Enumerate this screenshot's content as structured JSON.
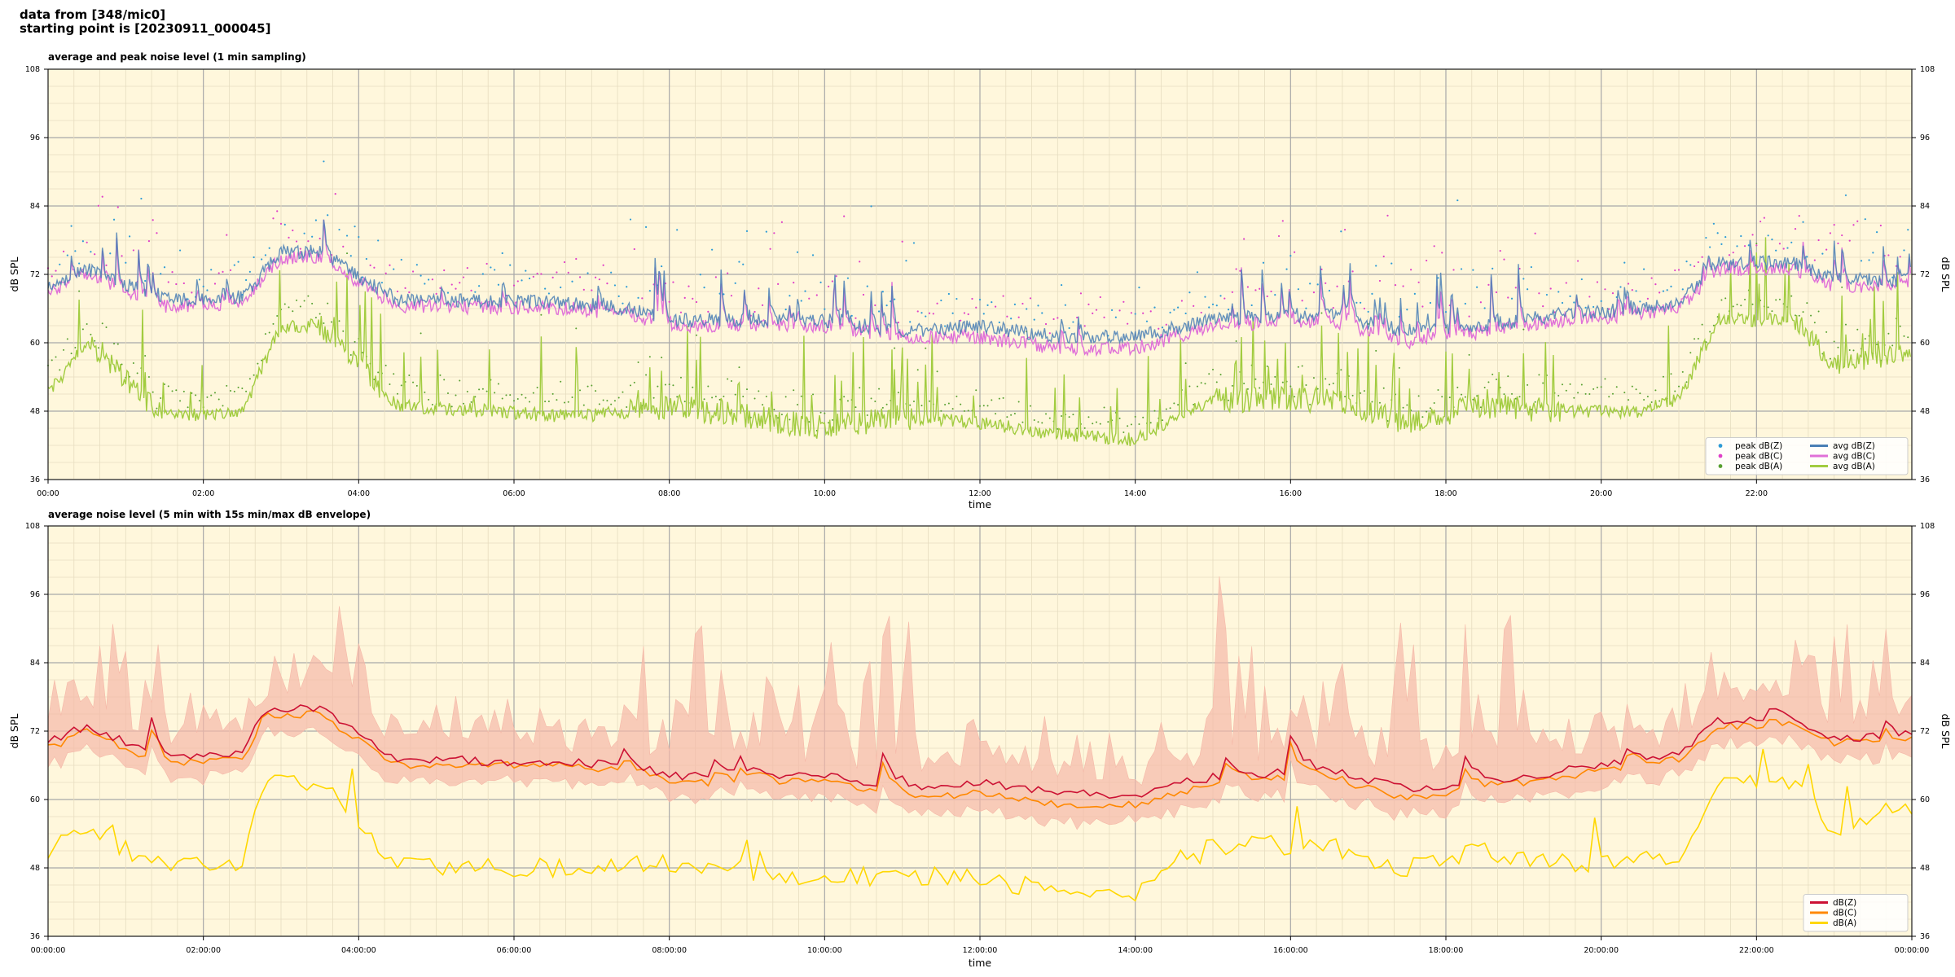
{
  "header": {
    "line1": "data from [348/mic0]",
    "line2": "starting point is [20230911_000045]"
  },
  "chart_data": [
    {
      "type": "line",
      "title": "average and peak noise level (1 min sampling)",
      "xlabel": "time",
      "ylabel": "dB SPL",
      "ylim": [
        36,
        108
      ],
      "yticks": [
        "36",
        "48",
        "60",
        "72",
        "84",
        "96",
        "108"
      ],
      "xlim_hours": [
        0,
        24
      ],
      "xticks": [
        "00:00",
        "02:00",
        "04:00",
        "06:00",
        "08:00",
        "10:00",
        "12:00",
        "14:00",
        "16:00",
        "18:00",
        "20:00",
        "22:00"
      ],
      "grid": true,
      "legend_position": "bottom-right",
      "legend": [
        {
          "label": "peak dB(Z)",
          "kind": "dot",
          "color": "#2e9bd6"
        },
        {
          "label": "peak dB(C)",
          "kind": "dot",
          "color": "#e040c8"
        },
        {
          "label": "peak dB(A)",
          "kind": "dot",
          "color": "#58a030"
        },
        {
          "label": "avg dB(Z)",
          "kind": "line",
          "color": "#4a7fb5"
        },
        {
          "label": "avg dB(C)",
          "kind": "line",
          "color": "#e070d8"
        },
        {
          "label": "avg dB(A)",
          "kind": "line",
          "color": "#a2cc40"
        }
      ],
      "series_baselines": {
        "x": [
          0,
          0.5,
          1.5,
          2.5,
          3.0,
          3.5,
          4.5,
          6.8,
          7.5,
          8.0,
          10.0,
          11.0,
          12.0,
          13.0,
          14.0,
          15.0,
          16.5,
          17.5,
          18.5,
          19.5,
          20.5,
          21.0,
          21.5,
          22.5,
          23.0,
          23.9
        ],
        "avg_Z": [
          70,
          73,
          67.5,
          68,
          76,
          76,
          67.5,
          67,
          66,
          64,
          64,
          62,
          63,
          61,
          61,
          64,
          65,
          62,
          63,
          65,
          66,
          67,
          74,
          74,
          71,
          71
        ],
        "avg_C": [
          69,
          72,
          66.5,
          67,
          75,
          75,
          66.5,
          66,
          65,
          63,
          63,
          61,
          61,
          59,
          59,
          63,
          64,
          60,
          62,
          64,
          65,
          66,
          73,
          73,
          70,
          70
        ],
        "avg_A": [
          51,
          60,
          47,
          48,
          63,
          63,
          49,
          47,
          48,
          49,
          45,
          47,
          46,
          44,
          43,
          50,
          50,
          46,
          49,
          48,
          48,
          50,
          64,
          64,
          56,
          58
        ]
      }
    },
    {
      "type": "line",
      "title": "average noise level (5 min with 15s min/max dB envelope)",
      "xlabel": "time",
      "ylabel": "dB SPL",
      "ylim": [
        36,
        108
      ],
      "yticks": [
        "36",
        "48",
        "60",
        "72",
        "84",
        "96",
        "108"
      ],
      "xlim_hours": [
        0,
        24
      ],
      "xticks": [
        "00:00:00",
        "02:00:00",
        "04:00:00",
        "06:00:00",
        "08:00:00",
        "10:00:00",
        "12:00:00",
        "14:00:00",
        "16:00:00",
        "18:00:00",
        "20:00:00",
        "22:00:00",
        "00:00:00"
      ],
      "grid": true,
      "legend_position": "bottom-right",
      "legend": [
        {
          "label": "dB(Z)",
          "kind": "line",
          "color": "#cc1133"
        },
        {
          "label": "dB(C)",
          "kind": "line",
          "color": "#ff8800"
        },
        {
          "label": "dB(A)",
          "kind": "line",
          "color": "#ffd700"
        }
      ],
      "envelope_color": "#f5b8a8",
      "series_baselines": {
        "x": [
          0,
          0.5,
          1.5,
          2.5,
          2.8,
          3.5,
          4.5,
          6.8,
          7.5,
          8.0,
          10.0,
          11.0,
          12.0,
          13.0,
          14.0,
          15.0,
          16.5,
          17.5,
          18.5,
          19.5,
          20.5,
          21.0,
          21.5,
          22.5,
          23.0,
          24.0
        ],
        "Z": [
          70,
          73,
          67,
          68,
          76,
          76,
          67,
          66.5,
          66,
          64,
          64,
          62,
          63,
          61,
          61,
          64,
          65,
          62,
          63,
          65,
          67,
          68,
          74,
          74,
          71,
          71
        ],
        "C": [
          69,
          72,
          66,
          67,
          75,
          75,
          66,
          66,
          65,
          63,
          63,
          60.5,
          61,
          59,
          59,
          63,
          64,
          60,
          62,
          64,
          66,
          67,
          73,
          73,
          70,
          70
        ],
        "A": [
          51,
          55,
          48,
          49,
          63,
          63,
          48,
          48,
          49,
          49,
          46,
          47,
          46,
          44,
          43,
          52,
          52,
          48,
          51,
          49,
          49,
          50,
          63,
          63,
          54,
          58
        ]
      }
    }
  ]
}
